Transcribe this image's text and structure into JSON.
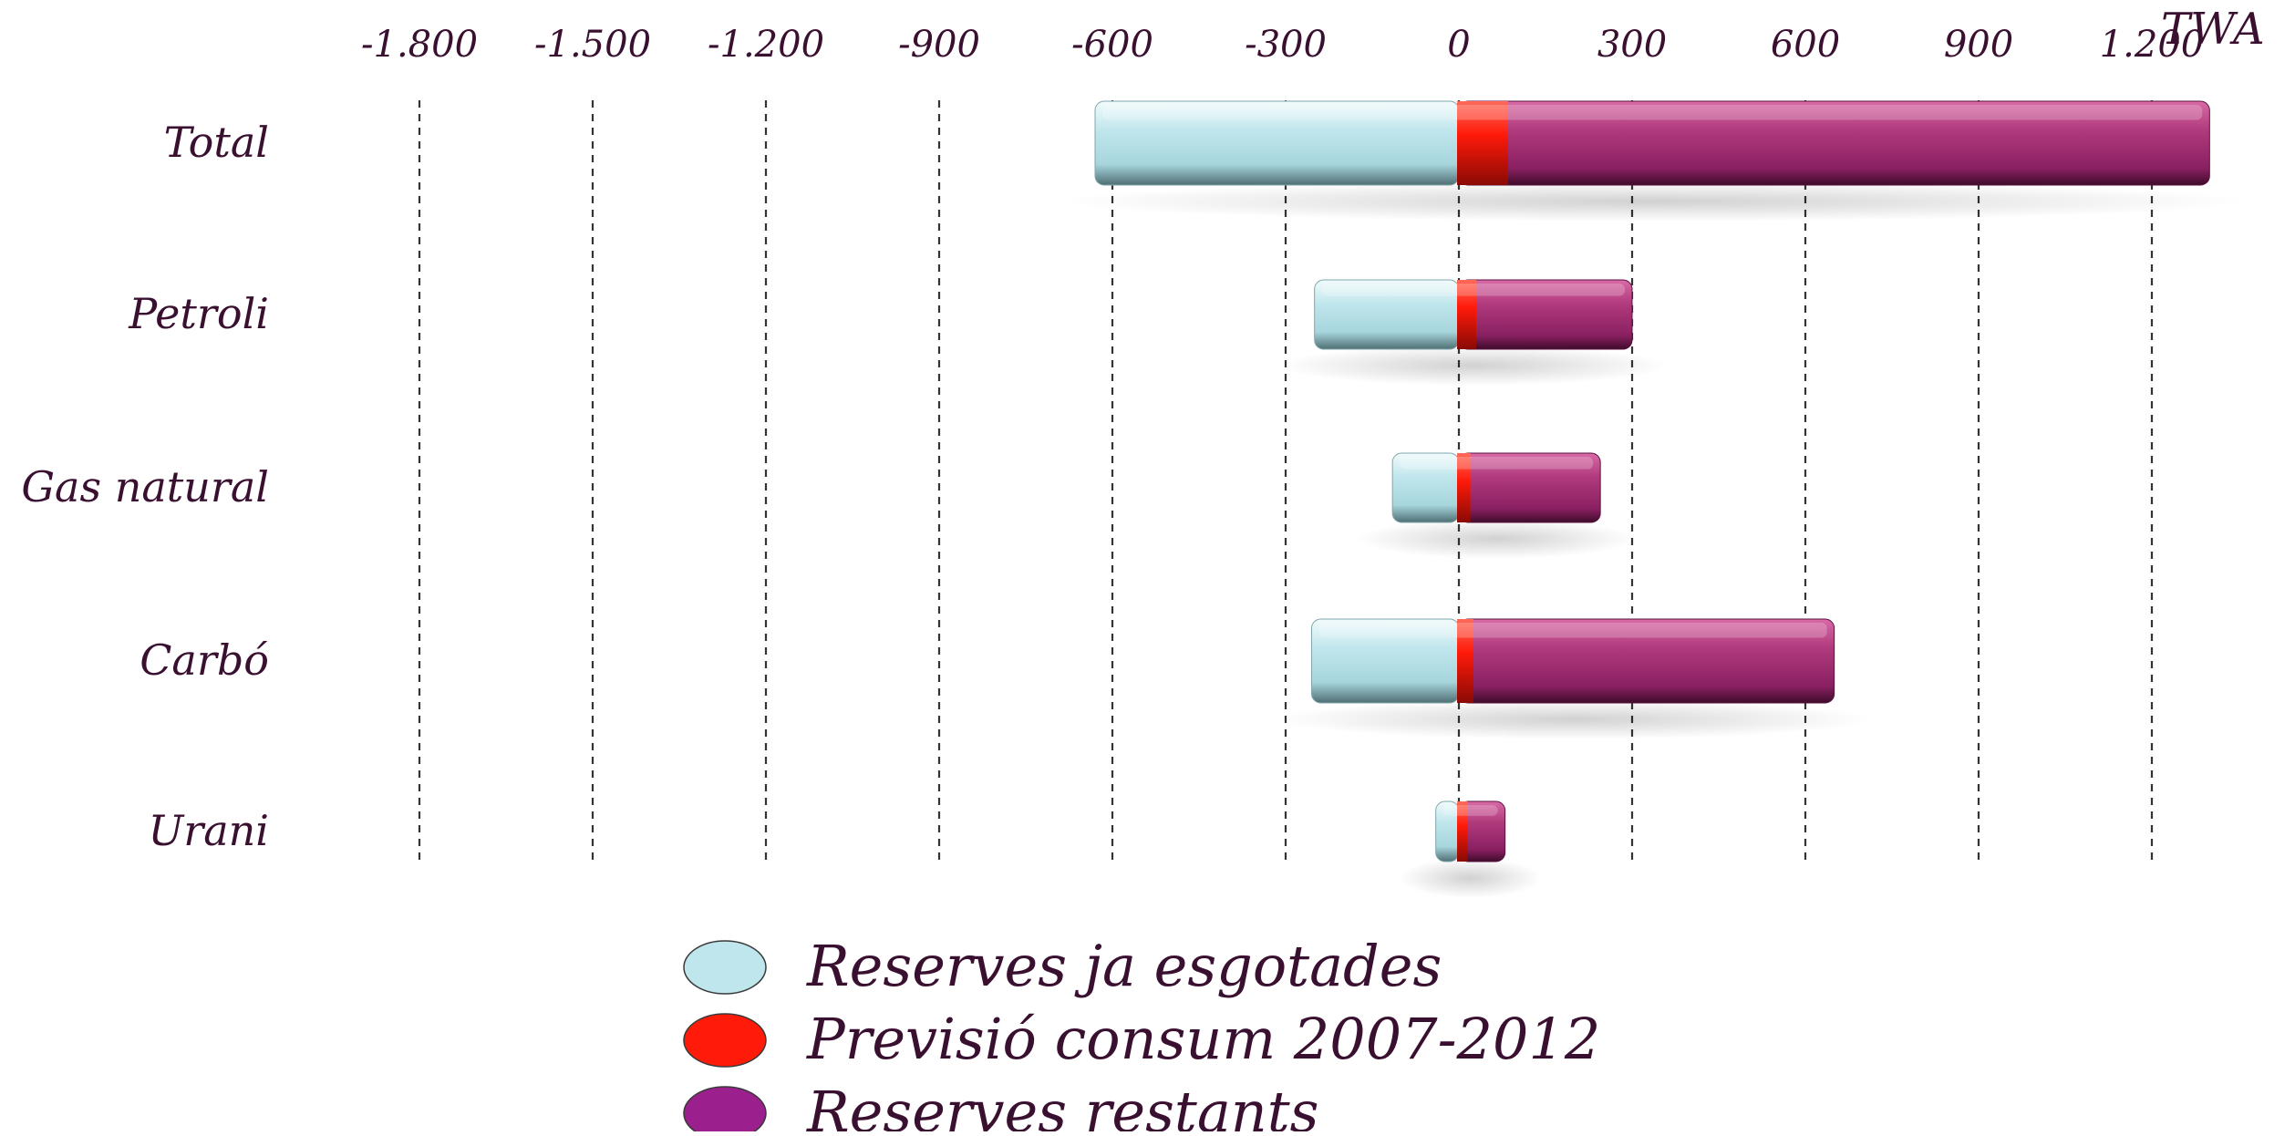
{
  "chart_data": {
    "type": "bar",
    "orientation": "horizontal",
    "stacked": "diverging",
    "unit": "TWA",
    "categories": [
      "Total",
      "Petroli",
      "Gas natural",
      "Carbó",
      "Urani"
    ],
    "series": [
      {
        "name": "Reserves ja esgotades",
        "color": "#bfe6ec",
        "values": [
          -630,
          -250,
          -115,
          -255,
          -40
        ]
      },
      {
        "name": "Previsió consum 2007-2012",
        "color": "#ff1a0a",
        "values": [
          85,
          30,
          20,
          25,
          15
        ]
      },
      {
        "name": "Reserves restants",
        "color": "#a0286e",
        "values": [
          1215,
          270,
          225,
          625,
          65
        ]
      }
    ],
    "xlim": [
      -1900,
      1400
    ],
    "xticks": [
      -1800,
      -1500,
      -1200,
      -900,
      -600,
      -300,
      0,
      300,
      600,
      900,
      1200
    ],
    "xtick_labels": [
      "-1.800",
      "-1.500",
      "-1.200",
      "-900",
      "-600",
      "-300",
      "0",
      "300",
      "600",
      "900",
      "1.200"
    ],
    "grid": "vertical dashed",
    "legend_position": "bottom",
    "legend_swatch_colors": [
      "#bfe6ec",
      "#ff1a0a",
      "#9b1f8c"
    ]
  }
}
